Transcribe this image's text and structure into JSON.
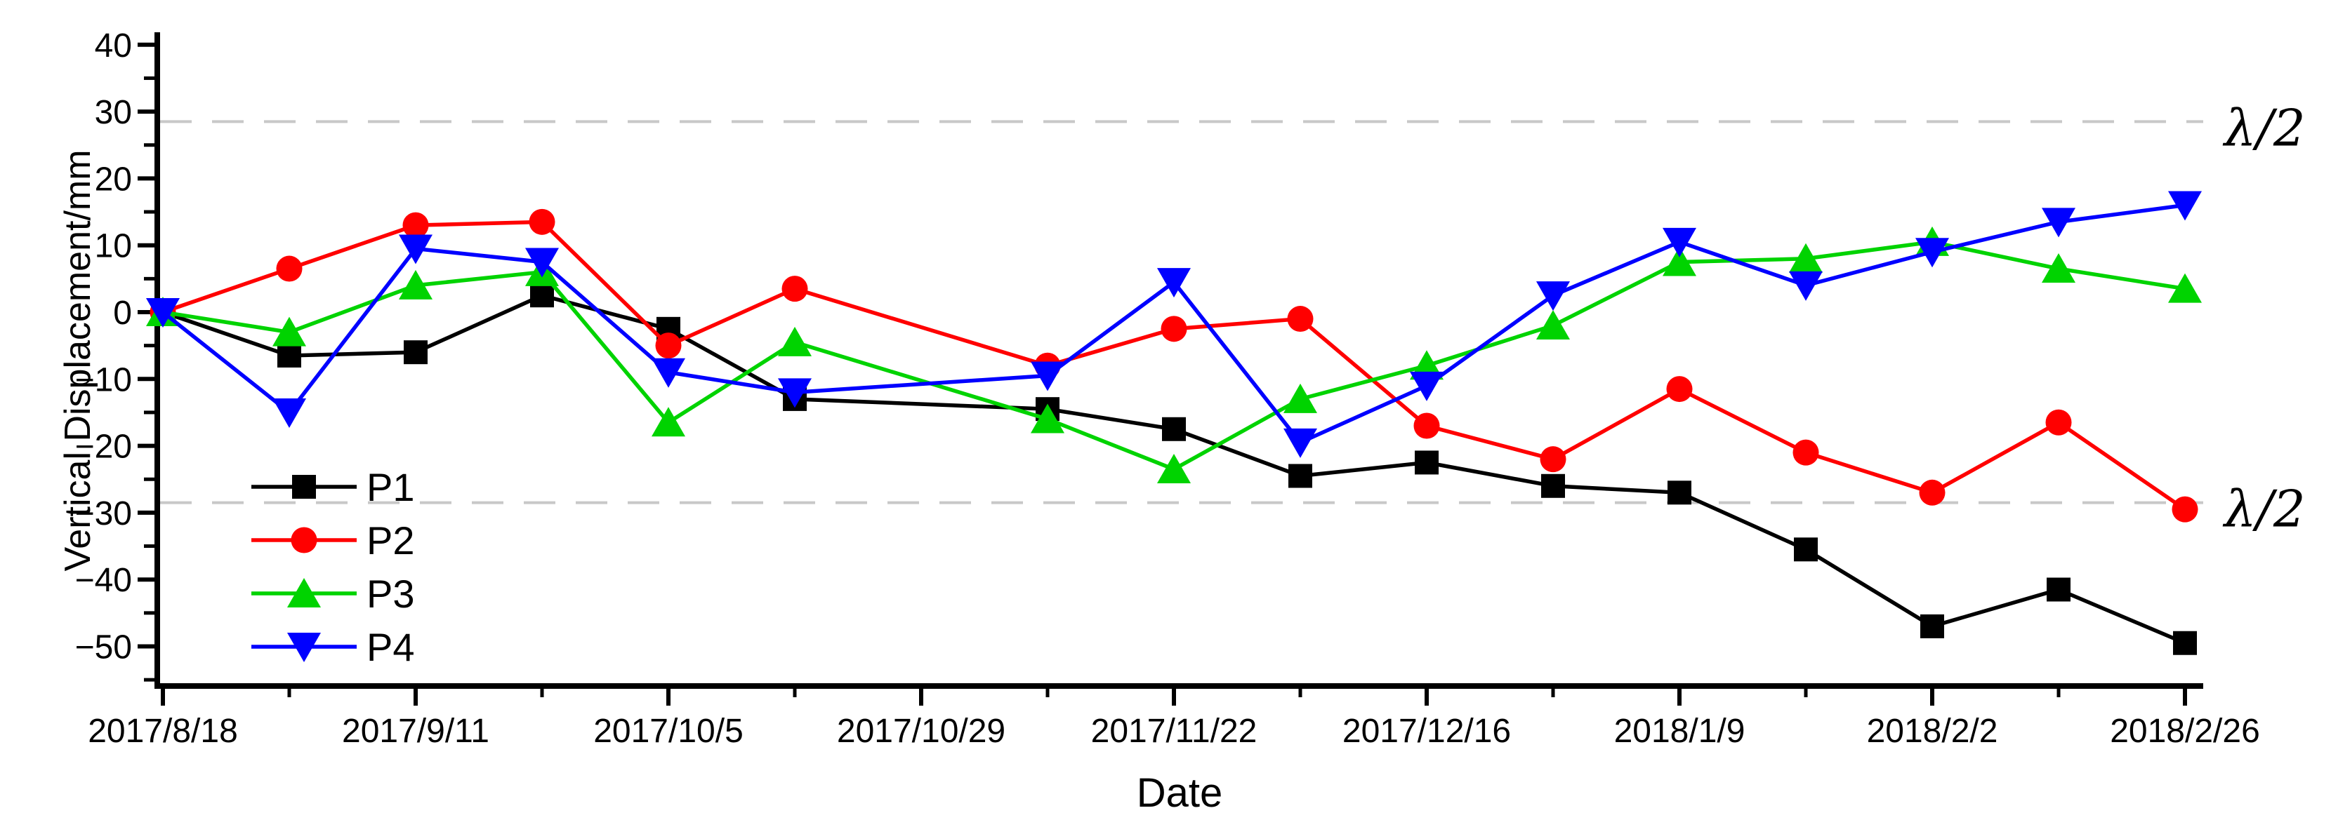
{
  "chart_data": {
    "type": "line",
    "title": "",
    "xlabel": "Date",
    "ylabel": "Vertical Displacement/mm",
    "background_color": "#ffffff",
    "grid": false,
    "legend_position": "inside-left-bottom",
    "x_tick_labels": [
      "2017/8/18",
      "2017/9/11",
      "2017/10/5",
      "2017/10/29",
      "2017/11/22",
      "2017/12/16",
      "2018/1/9",
      "2018/2/2",
      "2018/2/26"
    ],
    "x_tick_days": [
      0,
      24,
      48,
      72,
      96,
      120,
      144,
      168,
      192
    ],
    "x_minor_tick_days": [
      12,
      36,
      60,
      84,
      108,
      132,
      156,
      180
    ],
    "y_tick_labels": [
      "40",
      "30",
      "20",
      "10",
      "0",
      "−10",
      "−20",
      "−30",
      "−40",
      "−50"
    ],
    "y_tick_values": [
      40,
      30,
      20,
      10,
      0,
      -10,
      -20,
      -30,
      -40,
      -50
    ],
    "y_minor_tick_values": [
      35,
      25,
      15,
      5,
      -5,
      -15,
      -25,
      -35,
      -45,
      -55
    ],
    "ylim": [
      -56,
      42
    ],
    "dates": [
      "2017/8/18",
      "2017/8/30",
      "2017/9/11",
      "2017/9/23",
      "2017/10/5",
      "2017/10/17",
      "2017/11/10",
      "2017/11/22",
      "2017/12/4",
      "2017/12/16",
      "2017/12/28",
      "2018/1/9",
      "2018/1/21",
      "2018/2/2",
      "2018/2/14",
      "2018/2/26"
    ],
    "days": [
      0,
      12,
      24,
      36,
      48,
      60,
      84,
      96,
      108,
      120,
      132,
      144,
      156,
      168,
      180,
      192
    ],
    "series": [
      {
        "name": "P1",
        "color": "#000000",
        "marker": "square",
        "values": [
          0,
          -6.5,
          -6,
          2.5,
          -2.5,
          -13,
          -14.5,
          -17.5,
          -24.5,
          -22.5,
          -26,
          -27,
          -35.5,
          -47,
          -41.5,
          -49.5
        ]
      },
      {
        "name": "P2",
        "color": "#ff0000",
        "marker": "circle",
        "values": [
          0,
          6.5,
          13,
          13.5,
          -5,
          3.5,
          -8,
          -2.5,
          -1,
          -17,
          -22,
          -11.5,
          -21,
          -27,
          -16.5,
          -29.5
        ]
      },
      {
        "name": "P3",
        "color": "#00d300",
        "marker": "triangle-up",
        "values": [
          0,
          -3,
          4,
          6,
          -16.5,
          -4.5,
          -16,
          -23.5,
          -13,
          -8,
          -2,
          7.5,
          8,
          10.5,
          6.5,
          3.5
        ]
      },
      {
        "name": "P4",
        "color": "#0000ff",
        "marker": "triangle-down",
        "values": [
          0,
          -15,
          9.5,
          7.5,
          -9,
          -12,
          -9.5,
          4.5,
          -19.5,
          -11,
          2.5,
          10.5,
          4,
          9,
          13.5,
          16
        ]
      }
    ],
    "reference_lines": [
      {
        "label": "λ/2",
        "value": 28.5,
        "color": "#c8c8c8",
        "style": "dashed",
        "label_color": "#3a3a3a"
      },
      {
        "label": "λ/2",
        "value": -28.5,
        "color": "#c8c8c8",
        "style": "dashed",
        "label_color": "#3a3a3a"
      }
    ]
  }
}
